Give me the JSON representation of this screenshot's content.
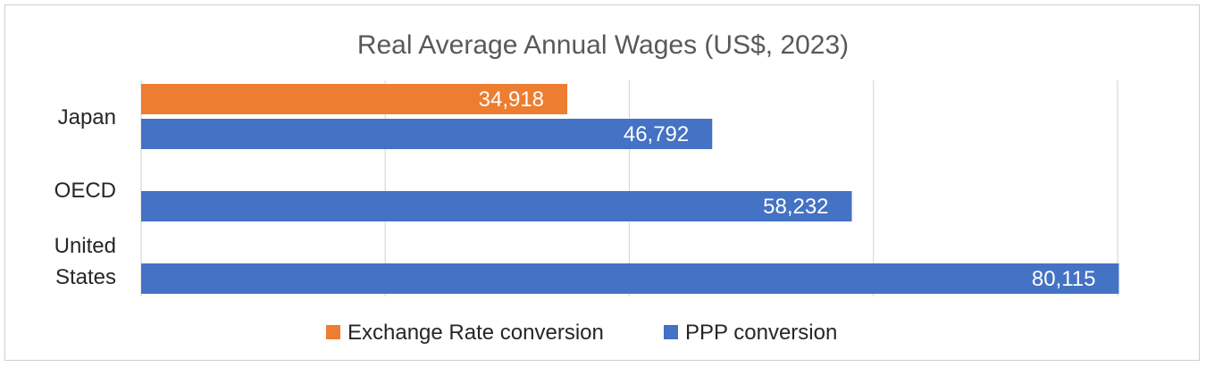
{
  "chart_data": {
    "type": "bar",
    "orientation": "horizontal",
    "title": "Real Average Annual Wages (US$, 2023)",
    "categories": [
      "Japan",
      "OECD",
      "United States"
    ],
    "category_lines": [
      [
        "Japan"
      ],
      [
        "OECD"
      ],
      [
        "United",
        "States"
      ]
    ],
    "series": [
      {
        "name": "Exchange Rate conversion",
        "color": "#ED7D31",
        "values": [
          34918,
          null,
          null
        ],
        "labels": [
          "34,918",
          "",
          ""
        ]
      },
      {
        "name": "PPP conversion",
        "color": "#4472C4",
        "values": [
          46792,
          58232,
          80115
        ],
        "labels": [
          "46,792",
          "58,232",
          "80,115"
        ]
      }
    ],
    "xlim": [
      0,
      80000
    ],
    "grid": true,
    "legend_position": "bottom"
  }
}
